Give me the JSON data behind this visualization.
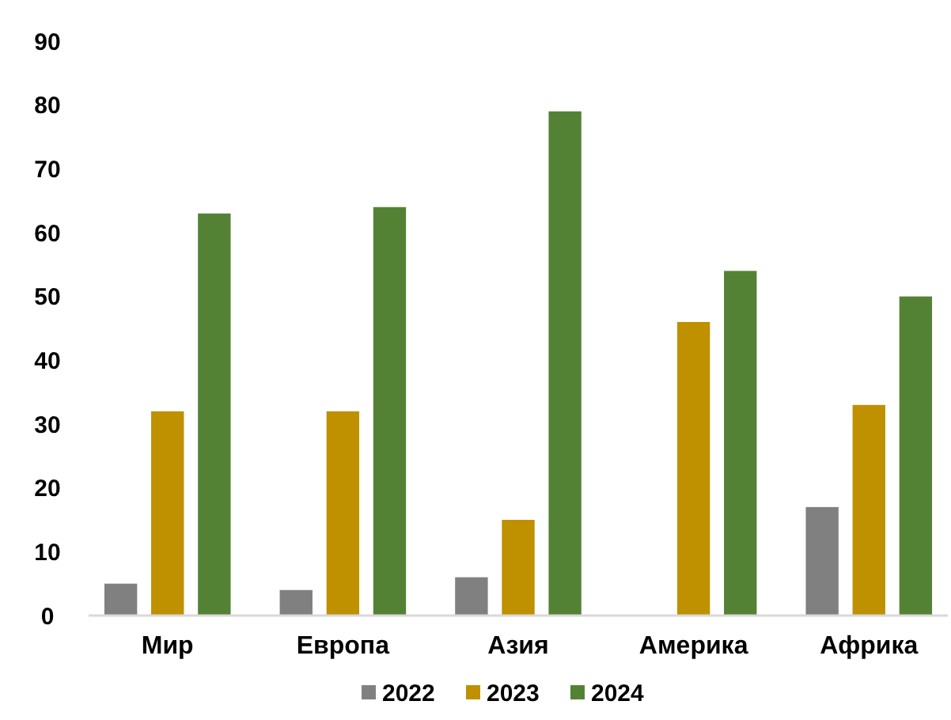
{
  "chart_data": {
    "type": "bar",
    "categories": [
      "Мир",
      "Европа",
      "Азия",
      "Америка",
      "Африка"
    ],
    "series": [
      {
        "name": "2022",
        "color": "#808080",
        "values": [
          5,
          4,
          6,
          null,
          17
        ]
      },
      {
        "name": "2023",
        "color": "#bf9000",
        "values": [
          32,
          32,
          15,
          46,
          33
        ]
      },
      {
        "name": "2024",
        "color": "#548235",
        "values": [
          63,
          64,
          79,
          54,
          50
        ]
      }
    ],
    "ylim": [
      0,
      90
    ],
    "yticks": [
      0,
      10,
      20,
      30,
      40,
      50,
      60,
      70,
      80,
      90
    ],
    "grid": false,
    "legend": "bottom"
  }
}
